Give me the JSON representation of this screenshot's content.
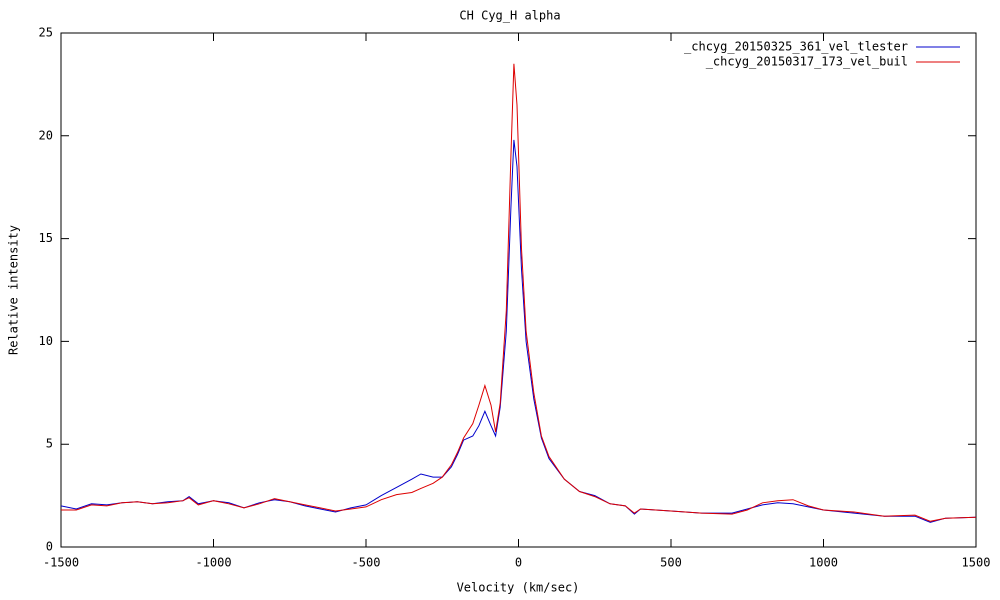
{
  "chart_data": {
    "type": "line",
    "title": "CH Cyg_H alpha",
    "x_label": "Velocity (km/sec)",
    "y_label": "Relative intensity",
    "x": [
      -1500,
      -1450,
      -1400,
      -1350,
      -1300,
      -1250,
      -1200,
      -1150,
      -1100,
      -1080,
      -1050,
      -1000,
      -950,
      -900,
      -850,
      -800,
      -750,
      -700,
      -650,
      -600,
      -550,
      -500,
      -450,
      -400,
      -350,
      -320,
      -280,
      -250,
      -220,
      -200,
      -180,
      -150,
      -130,
      -110,
      -90,
      -75,
      -60,
      -40,
      -25,
      -15,
      -5,
      10,
      25,
      50,
      75,
      100,
      150,
      200,
      250,
      300,
      350,
      380,
      400,
      500,
      600,
      700,
      750,
      800,
      850,
      900,
      950,
      1000,
      1100,
      1200,
      1300,
      1350,
      1400,
      1500
    ],
    "series": [
      {
        "name": "_chcyg_20150325_361_vel_tlester",
        "color": "#0000cc",
        "values": [
          2.0,
          1.85,
          2.1,
          2.05,
          2.15,
          2.2,
          2.1,
          2.2,
          2.25,
          2.45,
          2.1,
          2.25,
          2.15,
          1.9,
          2.15,
          2.3,
          2.2,
          2.0,
          1.85,
          1.7,
          1.9,
          2.05,
          2.5,
          2.9,
          3.3,
          3.55,
          3.4,
          3.4,
          3.9,
          4.5,
          5.2,
          5.4,
          5.9,
          6.6,
          5.9,
          5.4,
          6.8,
          10.5,
          16.5,
          19.8,
          18.5,
          13.5,
          10.0,
          7.2,
          5.3,
          4.3,
          3.3,
          2.7,
          2.5,
          2.1,
          2.0,
          1.6,
          1.85,
          1.75,
          1.65,
          1.65,
          1.85,
          2.05,
          2.15,
          2.1,
          1.95,
          1.8,
          1.65,
          1.5,
          1.5,
          1.2,
          1.4,
          1.45
        ]
      },
      {
        "name": "_chcyg_20150317_173_vel_buil",
        "color": "#dd0000",
        "values": [
          1.8,
          1.8,
          2.05,
          2.0,
          2.15,
          2.2,
          2.1,
          2.15,
          2.25,
          2.4,
          2.05,
          2.25,
          2.1,
          1.9,
          2.1,
          2.35,
          2.2,
          2.05,
          1.9,
          1.75,
          1.85,
          1.95,
          2.3,
          2.55,
          2.65,
          2.85,
          3.1,
          3.4,
          4.0,
          4.6,
          5.3,
          6.0,
          6.9,
          7.85,
          6.9,
          5.6,
          7.0,
          11.5,
          19.0,
          23.5,
          21.5,
          14.5,
          10.5,
          7.5,
          5.4,
          4.4,
          3.3,
          2.7,
          2.45,
          2.1,
          2.0,
          1.65,
          1.85,
          1.75,
          1.65,
          1.6,
          1.8,
          2.15,
          2.25,
          2.3,
          2.0,
          1.8,
          1.7,
          1.5,
          1.55,
          1.25,
          1.4,
          1.45
        ]
      }
    ],
    "xlim": [
      -1500,
      1500
    ],
    "xticks": [
      -1500,
      -1000,
      -500,
      0,
      500,
      1000,
      1500
    ],
    "ylim": [
      0,
      25
    ],
    "yticks": [
      0,
      5,
      10,
      15,
      20,
      25
    ],
    "legend": "top-right"
  }
}
